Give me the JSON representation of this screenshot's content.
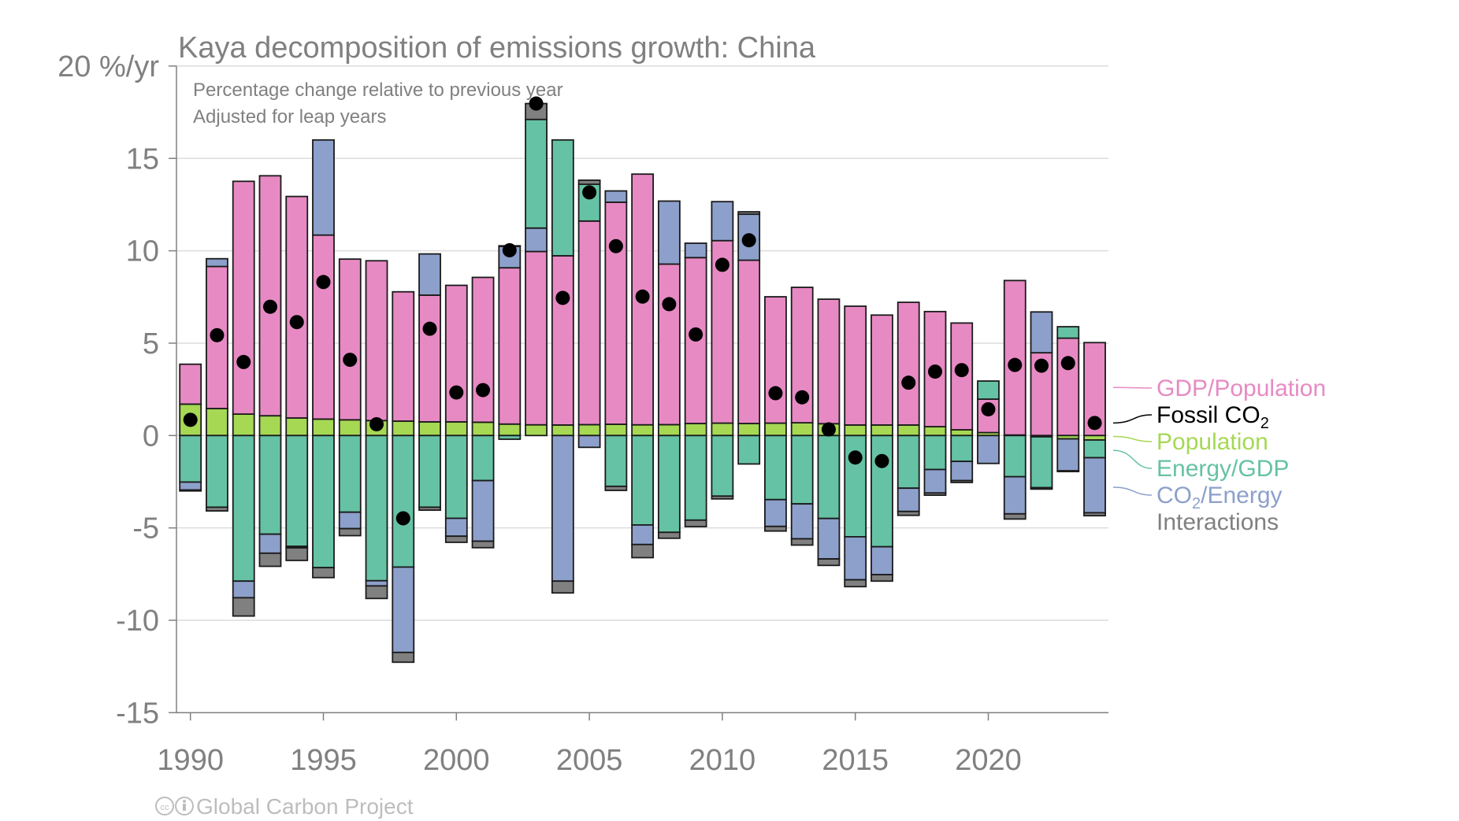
{
  "chart_data": {
    "type": "bar",
    "subtype": "stacked-diverging-with-points",
    "title": "Kaya decomposition of emissions growth: China",
    "subtitle_lines": [
      "Percentage change relative to previous year",
      "Adjusted for leap years"
    ],
    "ylabel_top": "20 %/yr",
    "xlabel": "",
    "ylim": [
      -15,
      20
    ],
    "yticks": [
      20,
      15,
      10,
      5,
      0,
      -5,
      -10,
      -15
    ],
    "ytick_labels": [
      "20 %/yr",
      "15",
      "10",
      "5",
      "0",
      "-5",
      "-10",
      "-15"
    ],
    "xlim": [
      1989.5,
      2024.5
    ],
    "xticks": [
      1990,
      1995,
      2000,
      2005,
      2010,
      2015,
      2020
    ],
    "xtick_labels": [
      "1990",
      "1995",
      "2000",
      "2005",
      "2010",
      "2015",
      "2020"
    ],
    "grid": true,
    "legend_position": "right",
    "years": [
      1990,
      1991,
      1992,
      1993,
      1994,
      1995,
      1996,
      1997,
      1998,
      1999,
      2000,
      2001,
      2002,
      2003,
      2004,
      2005,
      2006,
      2007,
      2008,
      2009,
      2010,
      2011,
      2012,
      2013,
      2014,
      2015,
      2016,
      2017,
      2018,
      2019,
      2020,
      2021,
      2022,
      2023,
      2024
    ],
    "series": [
      {
        "name": "Population",
        "color": "#a6d854",
        "values": [
          1.7,
          1.46,
          1.16,
          1.07,
          0.95,
          0.89,
          0.85,
          0.81,
          0.78,
          0.74,
          0.74,
          0.72,
          0.62,
          0.58,
          0.57,
          0.59,
          0.61,
          0.58,
          0.59,
          0.65,
          0.67,
          0.65,
          0.67,
          0.69,
          0.64,
          0.57,
          0.57,
          0.57,
          0.48,
          0.31,
          0.16,
          0.03,
          -0.07,
          -0.18,
          -0.24
        ]
      },
      {
        "name": "GDP/Population",
        "color": "#e78ac3",
        "values": [
          2.16,
          7.69,
          12.6,
          12.99,
          11.99,
          9.96,
          8.7,
          8.65,
          7.0,
          6.86,
          7.39,
          7.84,
          8.46,
          9.38,
          9.16,
          11.02,
          12.02,
          13.57,
          8.69,
          8.98,
          9.88,
          8.84,
          6.84,
          7.33,
          6.74,
          6.43,
          5.95,
          6.64,
          6.23,
          5.78,
          1.81,
          8.36,
          4.48,
          5.27,
          5.03
        ]
      },
      {
        "name": "Energy/GDP",
        "color": "#66c2a5",
        "values": [
          -2.52,
          -3.88,
          -7.88,
          -5.34,
          -6.0,
          -7.15,
          -4.15,
          -7.86,
          -7.12,
          -3.88,
          -4.48,
          -2.44,
          -0.2,
          5.88,
          6.27,
          1.99,
          -2.75,
          -4.84,
          -5.24,
          -4.58,
          -3.28,
          -1.54,
          -3.47,
          -3.7,
          -4.49,
          -5.48,
          -6.02,
          -2.85,
          -1.84,
          -1.4,
          0.98,
          -2.23,
          -2.75,
          0.62,
          -0.96
        ]
      },
      {
        "name": "CO2/Energy",
        "color": "#8da0cb",
        "values": [
          -0.43,
          0.42,
          -0.9,
          -1.03,
          -0.08,
          5.15,
          -0.89,
          -0.28,
          -4.62,
          2.23,
          -0.97,
          -3.28,
          1.16,
          1.27,
          -7.88,
          -0.64,
          0.61,
          -1.06,
          3.41,
          0.78,
          2.11,
          2.49,
          -1.45,
          -1.89,
          -2.19,
          -2.33,
          -1.51,
          -1.26,
          -1.27,
          -1.04,
          -1.51,
          -2.01,
          2.21,
          -1.73,
          -2.98
        ]
      },
      {
        "name": "Interactions",
        "color": "#808080",
        "values": [
          -0.05,
          -0.2,
          -0.99,
          -0.71,
          -0.68,
          -0.54,
          -0.38,
          -0.68,
          -0.53,
          -0.16,
          -0.33,
          -0.35,
          0.03,
          0.86,
          -0.64,
          0.22,
          -0.22,
          -0.71,
          -0.32,
          -0.35,
          -0.15,
          0.13,
          -0.25,
          -0.34,
          -0.35,
          -0.37,
          -0.35,
          -0.21,
          -0.12,
          -0.1,
          0.0,
          -0.28,
          -0.08,
          -0.04,
          -0.16
        ]
      }
    ],
    "fossil_co2": {
      "name": "Fossil CO2",
      "color": "#000000",
      "values": [
        0.85,
        5.43,
        3.98,
        6.97,
        6.14,
        8.31,
        4.1,
        0.61,
        -4.48,
        5.78,
        2.33,
        2.46,
        10.03,
        17.97,
        7.45,
        13.16,
        10.25,
        7.52,
        7.11,
        5.47,
        9.24,
        10.57,
        2.29,
        2.07,
        0.33,
        -1.19,
        -1.38,
        2.86,
        3.46,
        3.54,
        1.42,
        3.82,
        3.78,
        3.92,
        0.68
      ]
    },
    "legend": [
      {
        "label": "GDP/Population",
        "color": "#e78ac3",
        "sub": ""
      },
      {
        "label": "Fossil CO",
        "color": "#000000",
        "sub": "2"
      },
      {
        "label": "Population",
        "color": "#a6d854",
        "sub": ""
      },
      {
        "label": "Energy/GDP",
        "color": "#66c2a5",
        "sub": ""
      },
      {
        "label": "CO",
        "color": "#8da0cb",
        "sub": "2",
        "suffix": "/Energy"
      },
      {
        "label": "Interactions",
        "color": "#808080",
        "sub": ""
      }
    ]
  },
  "credit": {
    "icons": [
      "cc-icon",
      "by-icon"
    ],
    "text": "Global Carbon Project"
  }
}
